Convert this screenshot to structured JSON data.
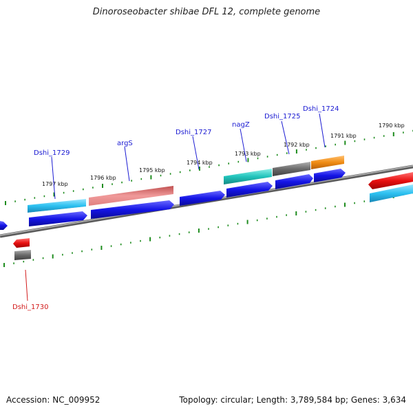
{
  "title": "Dinoroseobacter shibae DFL 12, complete genome",
  "footer": {
    "accession": "Accession: NC_009952",
    "summary": "Topology: circular; Length: 3,789,584 bp; Genes: 3,634"
  },
  "colors": {
    "backbone": "#8a8a8a",
    "tick": "#1e8c1e",
    "cds_forward": "#1414e6",
    "label_forward": "#1a1ad2",
    "label_reverse": "#d21a1a"
  },
  "kbp_labels": [
    "1797 kbp",
    "1796 kbp",
    "1795 kbp",
    "1794 kbp",
    "1793 kbp",
    "1792 kbp",
    "1791 kbp",
    "1790 kbp"
  ],
  "genes": [
    {
      "label": "Dshi_1729",
      "color": "#3cc8f0",
      "strand": "forward"
    },
    {
      "label": "argS",
      "color": "#ee8a8a",
      "strand": "forward"
    },
    {
      "label": "Dshi_1727",
      "color": "#1414e6",
      "strand": "forward"
    },
    {
      "label": "nagZ",
      "color": "#28c8c0",
      "strand": "forward"
    },
    {
      "label": "Dshi_1725",
      "color": "#707070",
      "strand": "forward"
    },
    {
      "label": "Dshi_1724",
      "color": "#f09020",
      "strand": "forward"
    },
    {
      "label": "Dshi_1730",
      "color": "#707070",
      "strand": "reverse"
    }
  ]
}
